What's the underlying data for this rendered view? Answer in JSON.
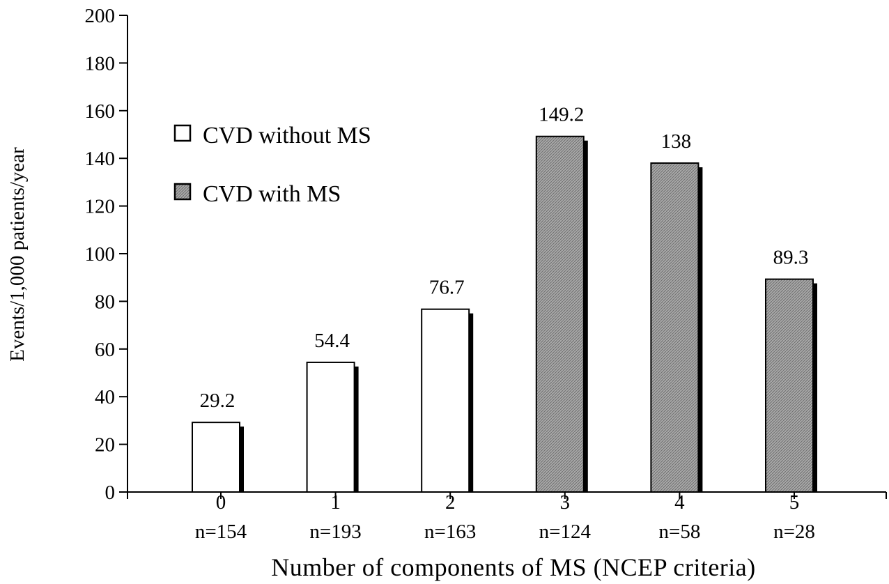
{
  "chart_data": {
    "type": "bar",
    "title": "",
    "xlabel": "Number of components of MS (NCEP criteria)",
    "ylabel": "Events/1,000 patients/year",
    "ylim": [
      0,
      200
    ],
    "yticks": [
      0,
      20,
      40,
      60,
      80,
      100,
      120,
      140,
      160,
      180,
      200
    ],
    "grid": false,
    "legend_position": "upper-left",
    "categories": [
      "0",
      "1",
      "2",
      "3",
      "4",
      "5"
    ],
    "sample_sizes": [
      "n=154",
      "n=193",
      "n=163",
      "n=124",
      "n=58",
      "n=28"
    ],
    "values": [
      29.2,
      54.4,
      76.7,
      149.2,
      138,
      89.3
    ],
    "value_labels": [
      "29.2",
      "54.4",
      "76.7",
      "149.2",
      "138",
      "89.3"
    ],
    "series_membership": [
      "without",
      "without",
      "without",
      "with",
      "with",
      "with"
    ],
    "series": [
      {
        "key": "without",
        "name": "CVD without MS",
        "fill": "#ffffff"
      },
      {
        "key": "with",
        "name": "CVD with MS",
        "fill": "#9a9a9a"
      }
    ],
    "shadow_color": "#000000"
  }
}
